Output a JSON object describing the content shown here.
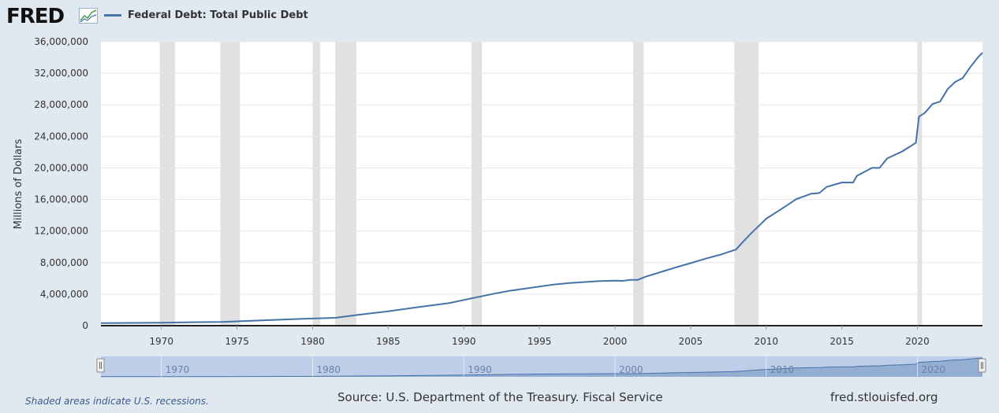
{
  "logo": {
    "text": "FRED",
    "icon": "fred-chart-icon"
  },
  "legend": {
    "label": "Federal Debt: Total Public Debt",
    "color": "#4572a7"
  },
  "footer": {
    "note": "Shaded areas indicate U.S. recessions.",
    "source": "Source: U.S. Department of the Treasury. Fiscal Service",
    "site": "fred.stlouisfed.org"
  },
  "chart_data": {
    "type": "line",
    "ylabel": "Millions of Dollars",
    "ylim": [
      0,
      36000000
    ],
    "y_ticks": [
      "0",
      "4,000,000",
      "8,000,000",
      "12,000,000",
      "16,000,000",
      "20,000,000",
      "24,000,000",
      "28,000,000",
      "32,000,000",
      "36,000,000"
    ],
    "xlim": [
      1966.0,
      2024.3
    ],
    "x_ticks": [
      "1970",
      "1975",
      "1980",
      "1985",
      "1990",
      "1995",
      "2000",
      "2005",
      "2010",
      "2015",
      "2020"
    ],
    "navigator_ticks": [
      "1970",
      "1980",
      "1990",
      "2000",
      "2010",
      "2020"
    ],
    "grid": true,
    "series": [
      {
        "color": "#4572a7",
        "x": [
          1966.0,
          1968.0,
          1970.0,
          1972.0,
          1974.0,
          1976.0,
          1978.0,
          1980.0,
          1981.5,
          1983.0,
          1985.0,
          1987.0,
          1989.0,
          1991.0,
          1992.0,
          1993.0,
          1994.0,
          1995.0,
          1996.0,
          1997.0,
          1998.0,
          1999.0,
          2000.0,
          2000.5,
          2001.0,
          2001.5,
          2002.0,
          2003.0,
          2004.0,
          2005.0,
          2006.0,
          2007.0,
          2008.0,
          2008.5,
          2009.0,
          2010.0,
          2011.0,
          2012.0,
          2013.0,
          2013.5,
          2014.0,
          2015.0,
          2015.75,
          2016.0,
          2017.0,
          2017.5,
          2018.0,
          2019.0,
          2019.5,
          2019.9,
          2020.1,
          2020.5,
          2021.0,
          2021.5,
          2022.0,
          2022.5,
          2023.0,
          2023.5,
          2024.0,
          2024.3
        ],
        "values": [
          320000,
          350000,
          380000,
          440000,
          480000,
          620000,
          780000,
          910000,
          1000000,
          1380000,
          1820000,
          2350000,
          2850000,
          3660000,
          4060000,
          4410000,
          4690000,
          4970000,
          5230000,
          5410000,
          5530000,
          5650000,
          5700000,
          5680000,
          5800000,
          5800000,
          6200000,
          6780000,
          7380000,
          7930000,
          8510000,
          9010000,
          9650000,
          10700000,
          11700000,
          13560000,
          14790000,
          16060000,
          16740000,
          16800000,
          17600000,
          18150000,
          18150000,
          19000000,
          20000000,
          20000000,
          21200000,
          22100000,
          22700000,
          23200000,
          26500000,
          27000000,
          28100000,
          28400000,
          30000000,
          30900000,
          31400000,
          32800000,
          34000000,
          34600000
        ]
      }
    ],
    "recessions": [
      [
        1969.9,
        1970.9
      ],
      [
        1973.9,
        1975.2
      ],
      [
        1980.0,
        1980.5
      ],
      [
        1981.5,
        1982.9
      ],
      [
        1990.5,
        1991.2
      ],
      [
        2001.2,
        2001.9
      ],
      [
        2007.9,
        2009.5
      ],
      [
        2020.0,
        2020.3
      ]
    ]
  }
}
